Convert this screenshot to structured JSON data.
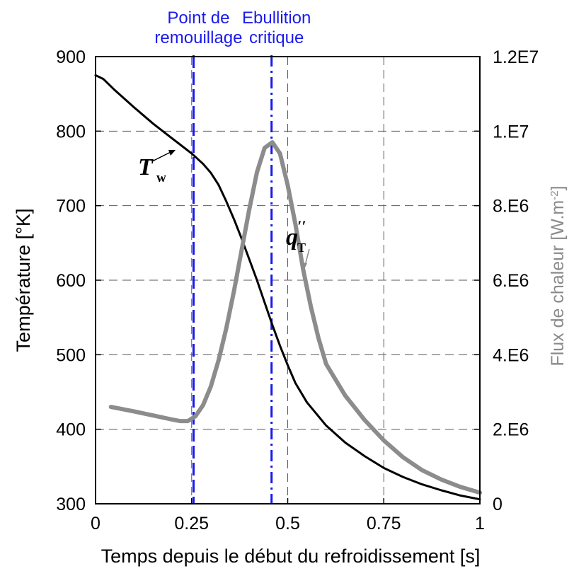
{
  "chart_data": {
    "type": "line",
    "title": "",
    "xlabel": "Temps depuis le début du refroidissement [s]",
    "ylabel": "Température [°K]",
    "ylabel_right": "Flux de chaleur [W.m-2]",
    "xlim": [
      0,
      1
    ],
    "ylim": [
      300,
      900
    ],
    "ylim_right": [
      0,
      12000000
    ],
    "x_ticks": [
      0,
      0.25,
      0.5,
      0.75,
      1
    ],
    "x_tick_labels": [
      "0",
      "0.25",
      "0.5",
      "0.75",
      "1"
    ],
    "y_ticks": [
      300,
      400,
      500,
      600,
      700,
      800,
      900
    ],
    "y_tick_labels": [
      "300",
      "400",
      "500",
      "600",
      "700",
      "800",
      "900"
    ],
    "y_right_ticks": [
      0,
      2000000,
      4000000,
      6000000,
      8000000,
      10000000,
      12000000
    ],
    "y_right_tick_labels": [
      "0",
      "2.E6",
      "4.E6",
      "6.E6",
      "8.E6",
      "1.E7",
      "1.2E7"
    ],
    "grid": true,
    "series": [
      {
        "name": "T_w",
        "axis": "left",
        "color": "#000000",
        "x": [
          0,
          0.02,
          0.05,
          0.1,
          0.15,
          0.2,
          0.25,
          0.28,
          0.3,
          0.32,
          0.34,
          0.36,
          0.38,
          0.4,
          0.42,
          0.44,
          0.46,
          0.48,
          0.5,
          0.52,
          0.55,
          0.6,
          0.65,
          0.7,
          0.75,
          0.8,
          0.85,
          0.9,
          0.95,
          1.0
        ],
        "values": [
          875,
          870,
          855,
          832,
          810,
          790,
          770,
          756,
          744,
          728,
          706,
          682,
          656,
          628,
          600,
          570,
          540,
          512,
          486,
          462,
          436,
          405,
          382,
          364,
          348,
          336,
          326,
          318,
          311,
          306
        ]
      },
      {
        "name": "q''_T",
        "axis": "right",
        "color": "#8c8c8c",
        "x": [
          0.04,
          0.1,
          0.15,
          0.2,
          0.22,
          0.24,
          0.26,
          0.28,
          0.3,
          0.32,
          0.34,
          0.36,
          0.38,
          0.4,
          0.42,
          0.44,
          0.46,
          0.48,
          0.5,
          0.52,
          0.54,
          0.56,
          0.58,
          0.6,
          0.65,
          0.7,
          0.75,
          0.8,
          0.85,
          0.9,
          0.95,
          1.0
        ],
        "values": [
          2600000,
          2480000,
          2370000,
          2260000,
          2220000,
          2220000,
          2350000,
          2650000,
          3150000,
          3850000,
          4700000,
          5700000,
          6800000,
          7900000,
          8900000,
          9550000,
          9700000,
          9400000,
          8550000,
          7500000,
          6300000,
          5300000,
          4450000,
          3750000,
          2900000,
          2250000,
          1700000,
          1250000,
          900000,
          650000,
          450000,
          300000
        ]
      }
    ],
    "vlines": [
      {
        "x": 0.255,
        "label_lines": [
          "Point de",
          "remouillage"
        ],
        "color": "#1a1aee",
        "style": "dashed"
      },
      {
        "x": 0.458,
        "label_lines": [
          "Ebullition",
          "critique"
        ],
        "color": "#1a1aee",
        "style": "dashdot"
      }
    ],
    "annotations": [
      {
        "text": "T",
        "sub": "w",
        "target_series": "T_w"
      },
      {
        "text": "q",
        "sub": "T",
        "sup": "′′",
        "target_series": "q''_T"
      }
    ],
    "colors": {
      "wall_temp": "#000000",
      "heat_flux": "#8c8c8c",
      "markers": "#1a1aee",
      "grid": "#5a5a5a"
    }
  }
}
